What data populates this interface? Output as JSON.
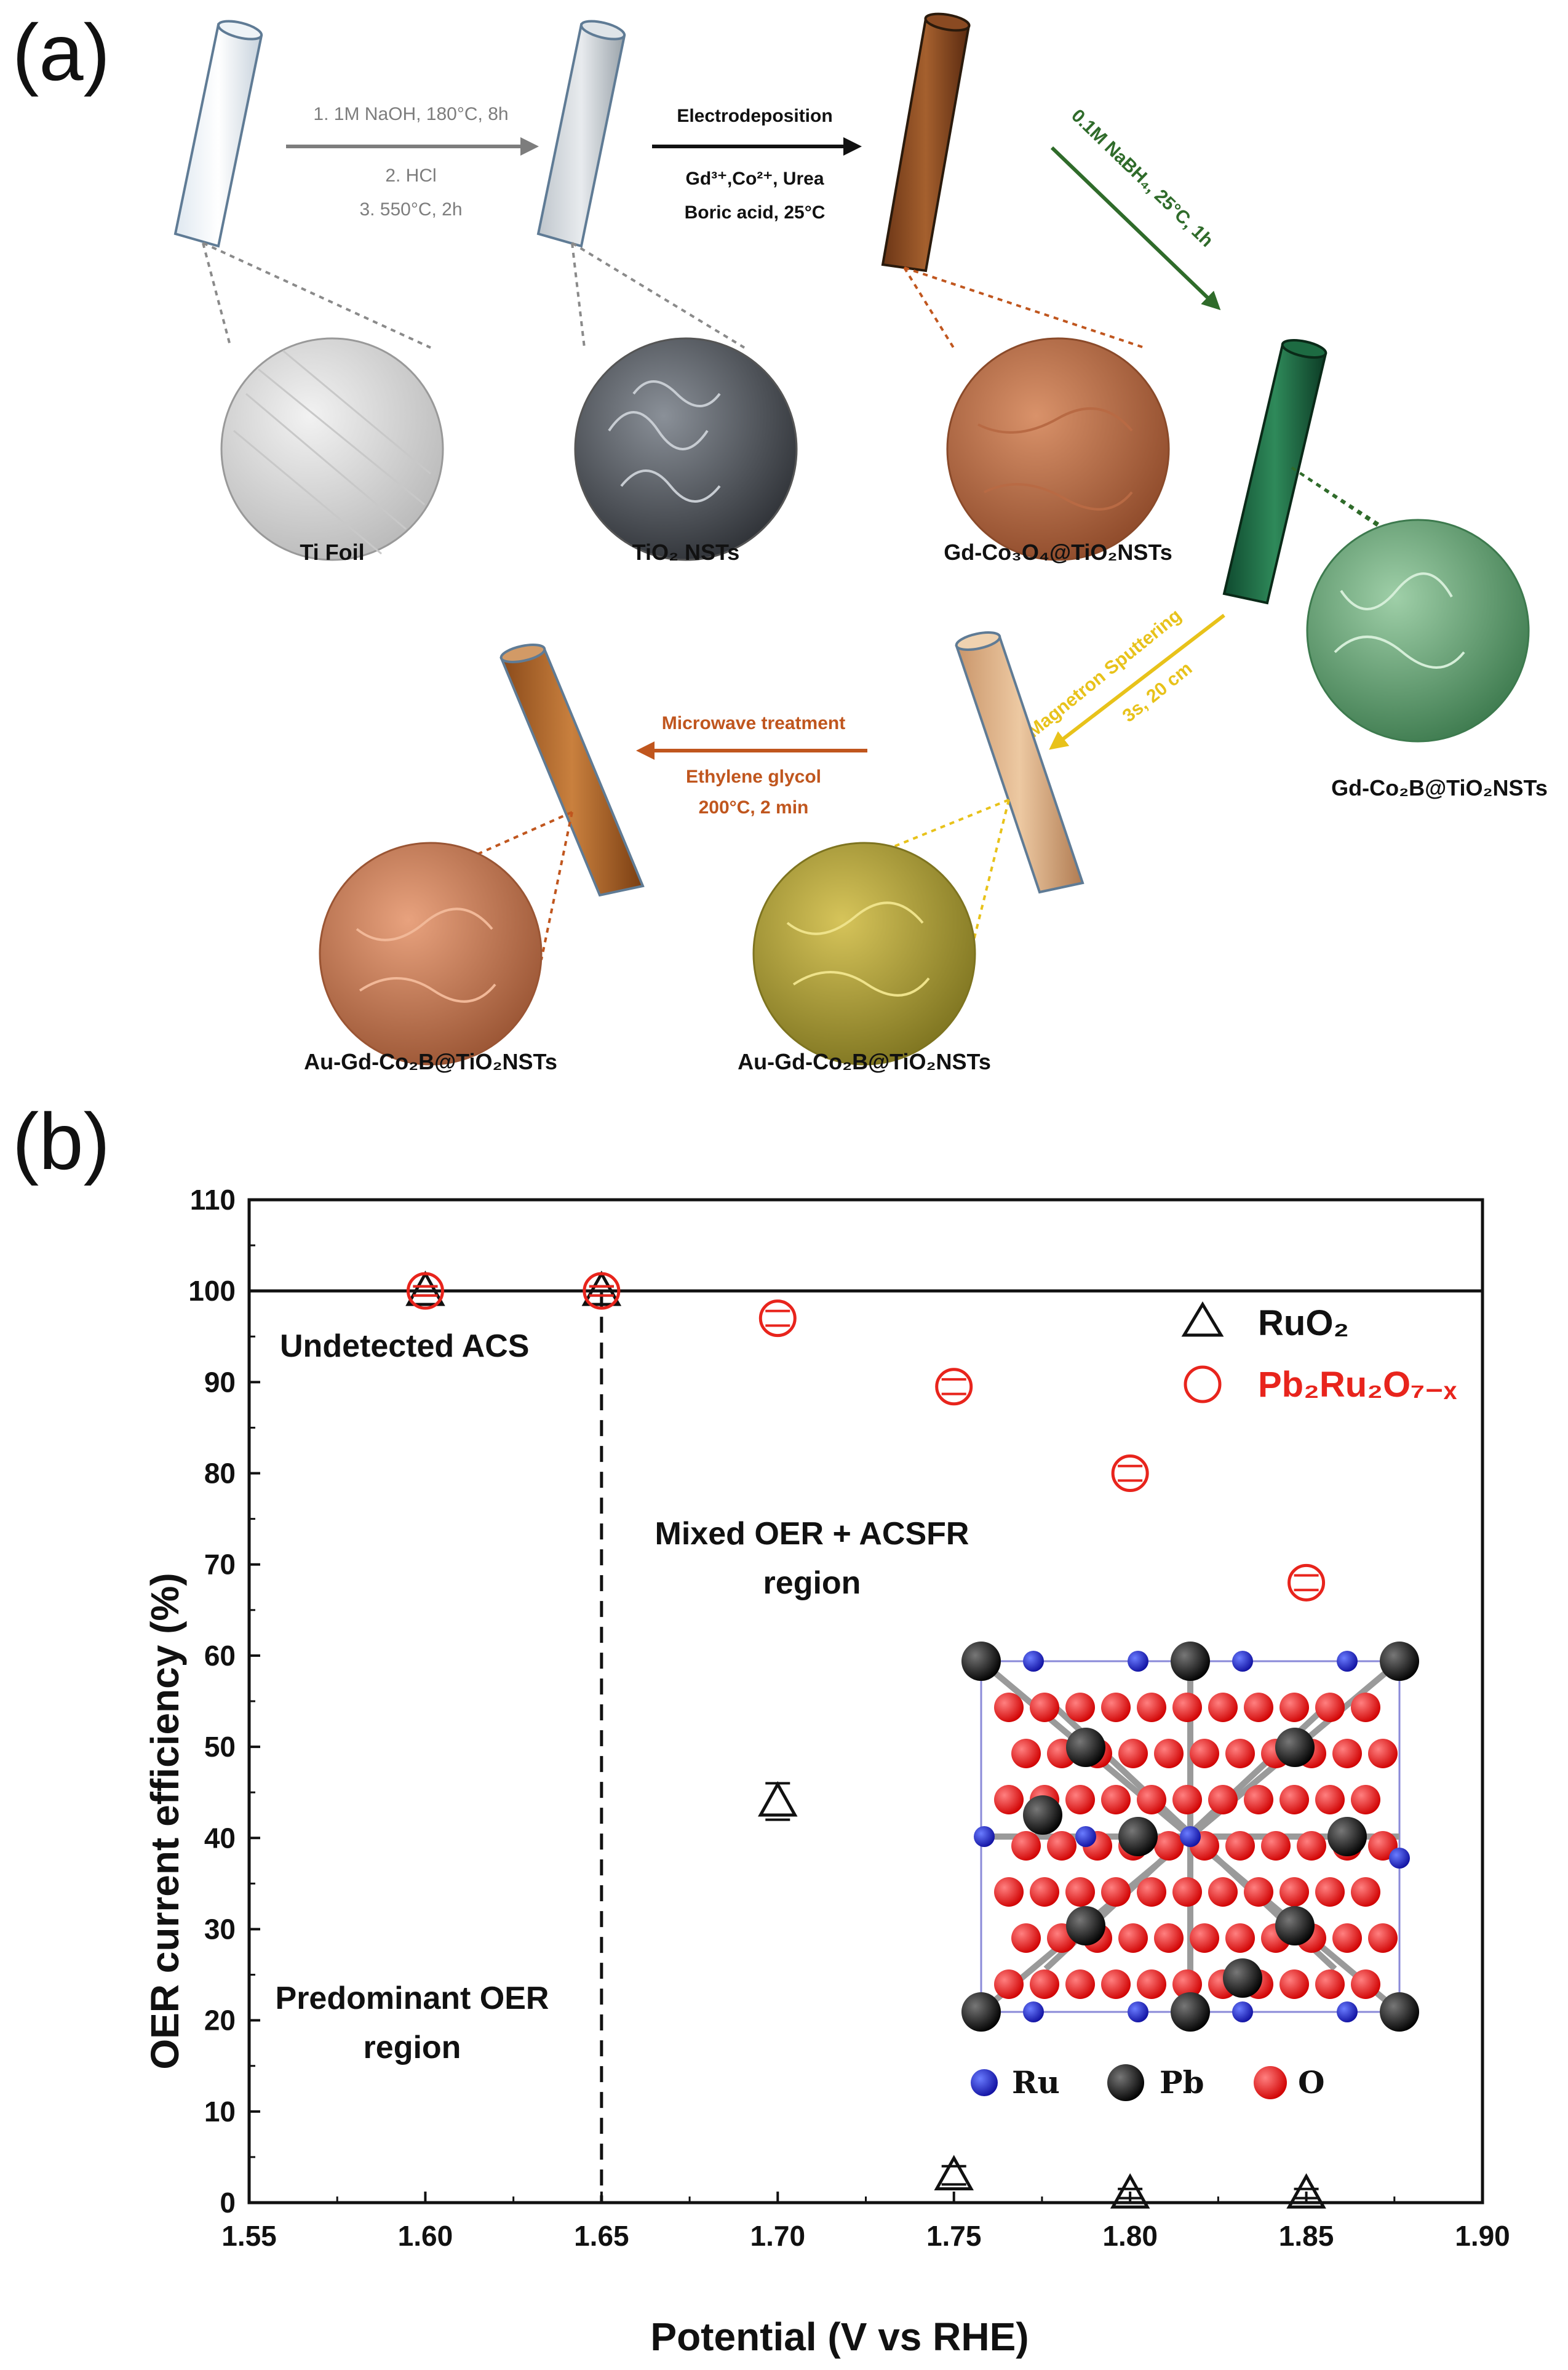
{
  "panel_a": {
    "label": "(a)",
    "step1": {
      "line1": "1. 1M NaOH, 180°C, 8h",
      "line2": "2. HCl",
      "line3": "3. 550°C, 2h"
    },
    "step2": {
      "title": "Electrodeposition",
      "line1": "Gd³⁺,Co²⁺, Urea",
      "line2": "Boric acid, 25°C"
    },
    "step3": {
      "text": "0.1M NaBH₄, 25°C, 1h"
    },
    "step4": {
      "line1": "Magnetron Sputtering",
      "line2": "3s, 20 cm"
    },
    "step5": {
      "title": "Microwave treatment",
      "line1": "Ethylene glycol",
      "line2": "200°C, 2 min"
    },
    "labels": {
      "ti_foil": "Ti Foil",
      "tio2": "TiO₂ NSTs",
      "gd_co3o4": "Gd-Co₃O₄@TiO₂NSTs",
      "gd_co2b": "Gd-Co₂B@TiO₂NSTs",
      "au_sputter": "Au-Gd-Co₂B@TiO₂NSTs",
      "au_final": "Au-Gd-Co₂B@TiO₂NSTs"
    },
    "colors": {
      "gray": "#7d7d7d",
      "green": "#2f6b2a",
      "yellow": "#e8c21a",
      "orange": "#c0561e",
      "dark": "#111111"
    }
  },
  "panel_b": {
    "label": "(b)",
    "regions": {
      "top_left": "Undetected ACS",
      "mixed_line1": "Mixed OER + ACSFR",
      "mixed_line2": "region",
      "bottom_line1": "Predominant OER",
      "bottom_line2": "region"
    },
    "inset_legend": {
      "ru": "Ru",
      "pb": "Pb",
      "o": "O"
    }
  },
  "chart_data": {
    "type": "scatter",
    "xlabel": "Potential (V vs RHE)",
    "ylabel": "OER current efficiency (%)",
    "xlim": [
      1.55,
      1.9
    ],
    "ylim": [
      0,
      110
    ],
    "xticks": [
      1.55,
      1.6,
      1.65,
      1.7,
      1.75,
      1.8,
      1.85,
      1.9
    ],
    "yticks": [
      0,
      10,
      20,
      30,
      40,
      50,
      60,
      70,
      80,
      90,
      100,
      110
    ],
    "grid": false,
    "legend_position": "top-right",
    "reference_line_y": 100,
    "divider_x": 1.65,
    "series": [
      {
        "name": "RuO₂",
        "marker": "triangle",
        "color": "#111111",
        "x": [
          1.6,
          1.65,
          1.7,
          1.75,
          1.8,
          1.85
        ],
        "y": [
          100,
          100,
          44,
          3,
          1,
          1
        ],
        "err": [
          0.5,
          0.5,
          2,
          1,
          0.5,
          0.5
        ]
      },
      {
        "name": "Pb₂Ru₂O₇₋ₓ",
        "marker": "circle",
        "color": "#e8241c",
        "x": [
          1.6,
          1.65,
          1.7,
          1.75,
          1.8,
          1.85
        ],
        "y": [
          100,
          100,
          97,
          89.5,
          80,
          68
        ],
        "err": [
          0.5,
          0.5,
          0.8,
          0.8,
          0.8,
          0.8
        ]
      }
    ]
  }
}
